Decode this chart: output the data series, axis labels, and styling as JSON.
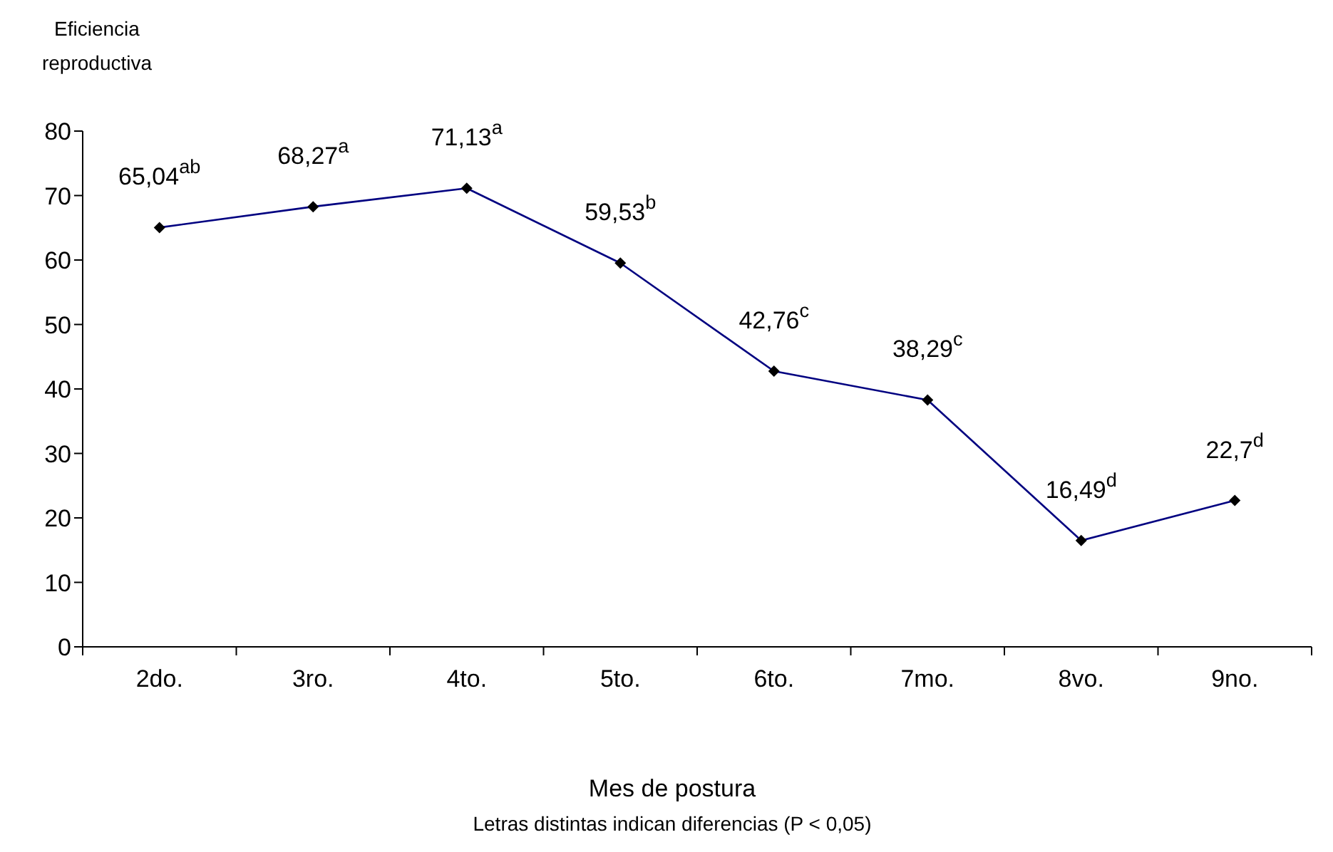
{
  "chart_data": {
    "type": "line",
    "ylabel": "Eficiencia reproductiva",
    "xlabel": "Mes de postura",
    "annotations": [
      "Letras distintas indican diferencias (P < 0,05)"
    ],
    "categories": [
      "2do.",
      "3ro.",
      "4to.",
      "5to.",
      "6to.",
      "7mo.",
      "8vo.",
      "9no."
    ],
    "series": [
      {
        "color": "#000080",
        "values": [
          65.04,
          68.27,
          71.13,
          59.53,
          42.76,
          38.29,
          16.49,
          22.7
        ],
        "value_labels": [
          "65,04$^{ab}$",
          "68,27$^{a}$",
          "71,13$^{a}$",
          "59,53$^{b}$",
          "42,76$^{c}$",
          "38,29$^{c}$",
          "16,49$^{d}$",
          "22,7$^{d}$"
        ]
      }
    ],
    "ylim": [
      0,
      80
    ],
    "yticks": [
      0,
      10,
      20,
      30,
      40,
      50,
      60,
      70,
      80
    ],
    "grid": false,
    "legend": false,
    "marker": "diamond",
    "line_style": "solid"
  }
}
